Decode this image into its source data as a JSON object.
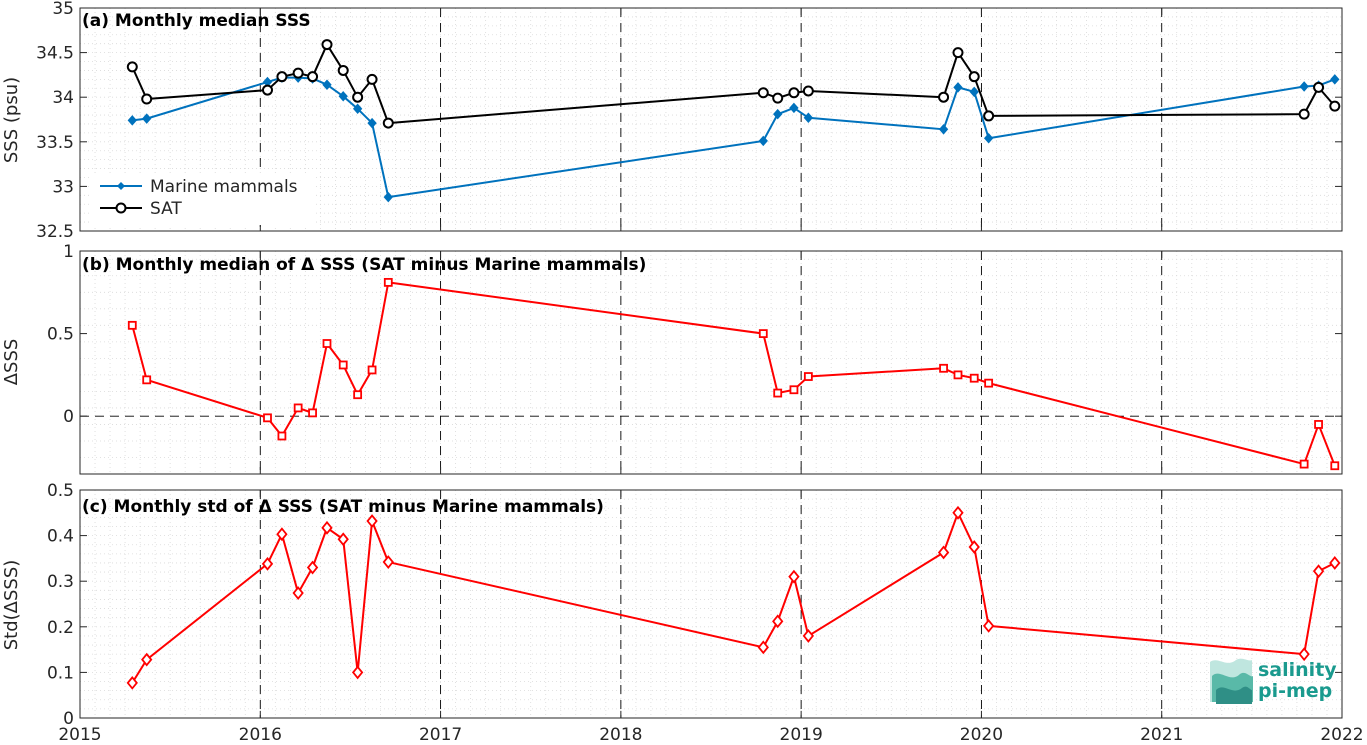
{
  "chart_data": [
    {
      "type": "line",
      "title": "(a) Monthly median SSS",
      "ylabel": "SSS (psu)",
      "ylim": [
        32.5,
        35
      ],
      "yticks": [
        "32.5",
        "33",
        "33.5",
        "34",
        "34.5",
        "35"
      ],
      "xlim": [
        2015,
        2022
      ],
      "grid": true,
      "legend": "left",
      "series": [
        {
          "name": "Marine mammals",
          "color": "#0072BD",
          "marker": "diamond-filled",
          "x": [
            2015.29,
            2015.37,
            2016.04,
            2016.12,
            2016.21,
            2016.29,
            2016.37,
            2016.46,
            2016.54,
            2016.62,
            2016.71,
            2018.79,
            2018.87,
            2018.96,
            2019.04,
            2019.79,
            2019.87,
            2019.96,
            2020.04,
            2021.79,
            2021.87,
            2021.96
          ],
          "y": [
            33.74,
            33.76,
            34.17,
            34.22,
            34.22,
            34.21,
            34.14,
            34.01,
            33.87,
            33.71,
            32.88,
            33.51,
            33.81,
            33.88,
            33.77,
            33.64,
            34.11,
            34.06,
            33.54,
            34.12,
            34.13,
            34.2
          ]
        },
        {
          "name": "SAT",
          "color": "#000000",
          "marker": "circle-open",
          "x": [
            2015.29,
            2015.37,
            2016.04,
            2016.12,
            2016.21,
            2016.29,
            2016.37,
            2016.46,
            2016.54,
            2016.62,
            2016.71,
            2018.79,
            2018.87,
            2018.96,
            2019.04,
            2019.79,
            2019.87,
            2019.96,
            2020.04,
            2021.79,
            2021.87,
            2021.96
          ],
          "y": [
            34.34,
            33.98,
            34.08,
            34.23,
            34.27,
            34.23,
            34.59,
            34.3,
            34.0,
            34.2,
            33.71,
            34.05,
            33.99,
            34.05,
            34.07,
            34.0,
            34.5,
            34.23,
            33.79,
            33.81,
            34.11,
            33.9
          ]
        }
      ]
    },
    {
      "type": "line",
      "title": "(b) Monthly median of Δ SSS (SAT minus Marine mammals)",
      "ylabel": "ΔSSS",
      "ylim": [
        -0.35,
        1
      ],
      "yticks": [
        "0",
        "0.5",
        "1"
      ],
      "xlim": [
        2015,
        2022
      ],
      "grid": true,
      "zero_line": true,
      "series": [
        {
          "color": "#ff0000",
          "marker": "square-open",
          "x": [
            2015.29,
            2015.37,
            2016.04,
            2016.12,
            2016.21,
            2016.29,
            2016.37,
            2016.46,
            2016.54,
            2016.62,
            2016.71,
            2018.79,
            2018.87,
            2018.96,
            2019.04,
            2019.79,
            2019.87,
            2019.96,
            2020.04,
            2021.79,
            2021.87,
            2021.96
          ],
          "y": [
            0.55,
            0.22,
            -0.01,
            -0.12,
            0.05,
            0.02,
            0.44,
            0.31,
            0.13,
            0.28,
            0.81,
            0.5,
            0.14,
            0.16,
            0.24,
            0.29,
            0.25,
            0.23,
            0.2,
            -0.29,
            -0.05,
            -0.3
          ]
        }
      ]
    },
    {
      "type": "line",
      "title": "(c) Monthly std of Δ SSS (SAT minus Marine mammals)",
      "ylabel": "Std(ΔSSS)",
      "ylim": [
        0,
        0.5
      ],
      "yticks": [
        "0",
        "0.1",
        "0.2",
        "0.3",
        "0.4",
        "0.5"
      ],
      "xlabel": "",
      "xticks": [
        "2015",
        "2016",
        "2017",
        "2018",
        "2019",
        "2020",
        "2021",
        "2022"
      ],
      "xlim": [
        2015,
        2022
      ],
      "grid": true,
      "series": [
        {
          "color": "#ff0000",
          "marker": "diamond-open",
          "x": [
            2015.29,
            2015.37,
            2016.04,
            2016.12,
            2016.21,
            2016.29,
            2016.37,
            2016.46,
            2016.54,
            2016.62,
            2016.71,
            2018.79,
            2018.87,
            2018.96,
            2019.04,
            2019.79,
            2019.87,
            2019.96,
            2020.04,
            2021.79,
            2021.87,
            2021.96
          ],
          "y": [
            0.077,
            0.128,
            0.338,
            0.403,
            0.274,
            0.33,
            0.417,
            0.392,
            0.1,
            0.432,
            0.342,
            0.155,
            0.212,
            0.31,
            0.18,
            0.363,
            0.45,
            0.375,
            0.202,
            0.14,
            0.322,
            0.34
          ]
        }
      ]
    }
  ],
  "logo": {
    "line1": "salinity",
    "line2": "pi-mep"
  }
}
